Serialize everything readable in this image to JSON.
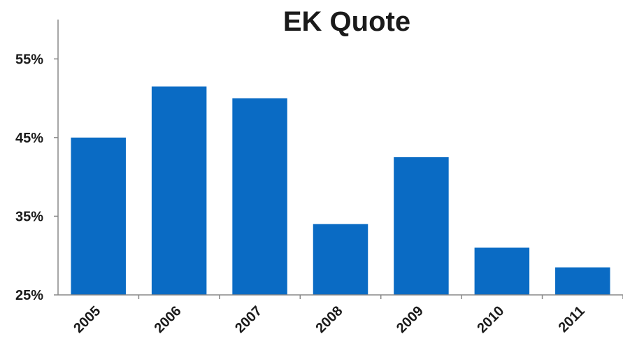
{
  "chart_data": {
    "type": "bar",
    "title": "EK Quote",
    "xlabel": "",
    "ylabel": "",
    "categories": [
      "2005",
      "2006",
      "2007",
      "2008",
      "2009",
      "2010",
      "2011"
    ],
    "values": [
      45.0,
      51.5,
      50.0,
      34.0,
      42.5,
      31.0,
      28.5
    ],
    "value_unit": "%",
    "ylim": [
      25,
      60
    ],
    "yticks": [
      25,
      35,
      45,
      55
    ],
    "ytick_labels": [
      "25%",
      "35%",
      "45%",
      "55%"
    ],
    "bar_color": "#0A6BC4",
    "grid": false,
    "legend": "none"
  }
}
